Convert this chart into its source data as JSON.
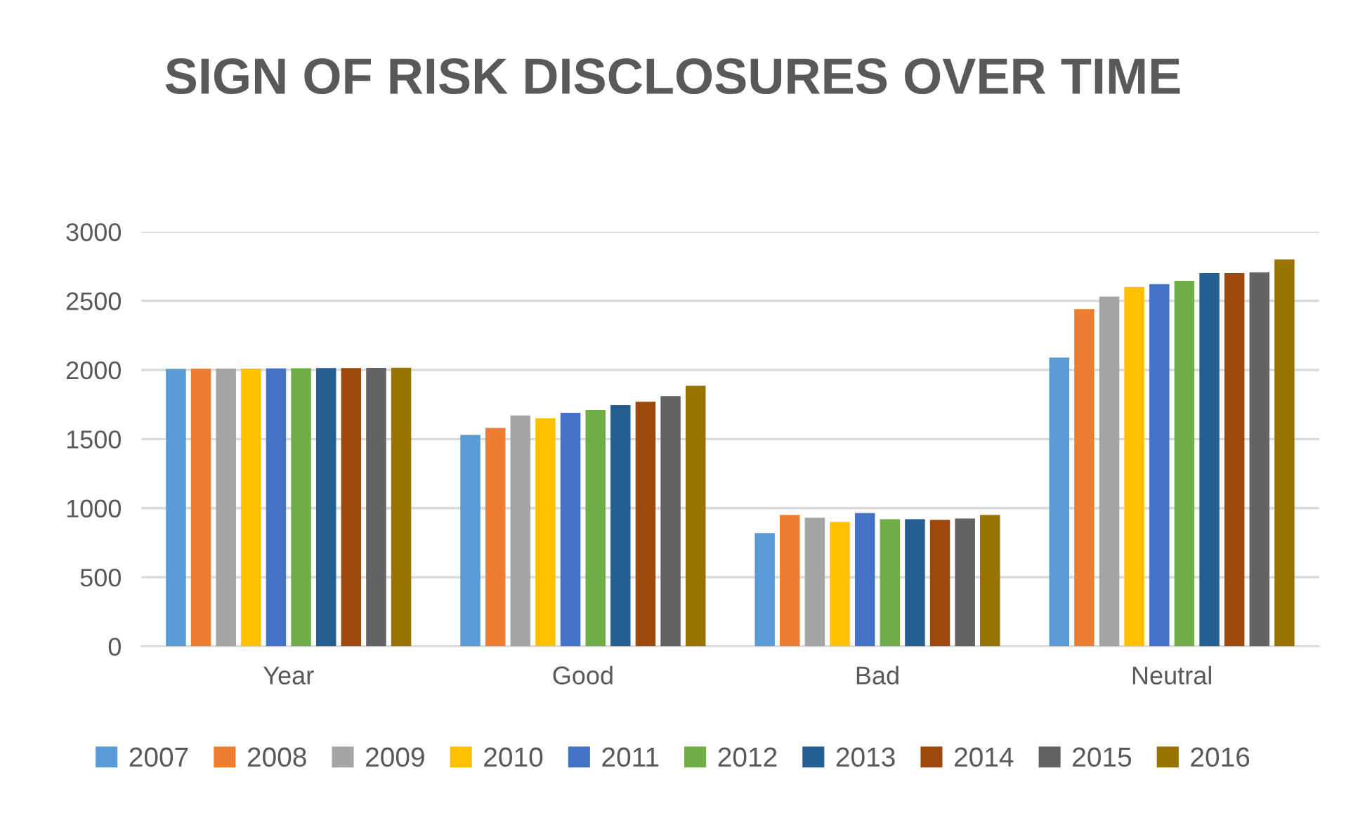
{
  "chart_data": {
    "type": "bar",
    "title": "SIGN OF RISK DISCLOSURES OVER TIME",
    "categories": [
      "Year",
      "Good",
      "Bad",
      "Neutral"
    ],
    "series": [
      {
        "name": "2007",
        "color": "#5b9bd5",
        "values": [
          2007,
          1530,
          820,
          2090
        ]
      },
      {
        "name": "2008",
        "color": "#ed7d31",
        "values": [
          2008,
          1580,
          950,
          2440
        ]
      },
      {
        "name": "2009",
        "color": "#a5a5a5",
        "values": [
          2009,
          1670,
          930,
          2530
        ]
      },
      {
        "name": "2010",
        "color": "#ffc000",
        "values": [
          2010,
          1650,
          900,
          2600
        ]
      },
      {
        "name": "2011",
        "color": "#4472c4",
        "values": [
          2011,
          1690,
          965,
          2620
        ]
      },
      {
        "name": "2012",
        "color": "#70ad47",
        "values": [
          2012,
          1710,
          920,
          2645
        ]
      },
      {
        "name": "2013",
        "color": "#255e91",
        "values": [
          2013,
          1745,
          920,
          2700
        ]
      },
      {
        "name": "2014",
        "color": "#9e480e",
        "values": [
          2014,
          1770,
          915,
          2700
        ]
      },
      {
        "name": "2015",
        "color": "#636363",
        "values": [
          2015,
          1810,
          925,
          2705
        ]
      },
      {
        "name": "2016",
        "color": "#997300",
        "values": [
          2016,
          1885,
          950,
          2800
        ]
      }
    ],
    "ylim": [
      0,
      3000
    ],
    "yticks": [
      0,
      500,
      1000,
      1500,
      2000,
      2500,
      3000
    ],
    "grid": "y",
    "legend": "bottom"
  }
}
